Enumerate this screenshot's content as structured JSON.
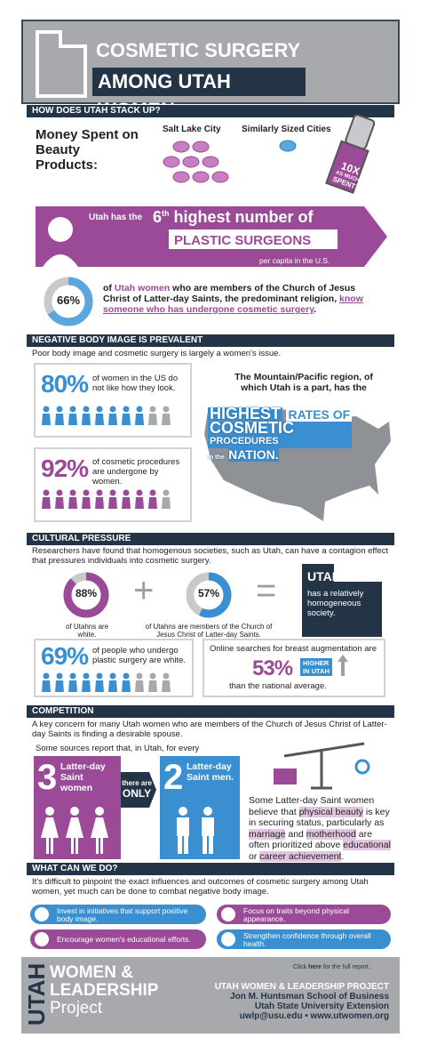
{
  "header": {
    "title_line1": "COSMETIC SURGERY",
    "title_line2": "AMONG UTAH WOMEN"
  },
  "stack_up": {
    "heading": "HOW DOES UTAH STACK UP?",
    "money_label": "Money Spent on Beauty Products:",
    "salt_lake": "Salt Lake City",
    "similar": "Similarly Sized Cities",
    "lipstick": [
      "10X",
      "AS MUCH",
      "SPENT!"
    ],
    "surgeons": {
      "lead": "Utah has the",
      "rank": 6,
      "rank_suffix": "th",
      "line1": "highest number of",
      "line2": "PLASTIC SURGEONS",
      "line3": "per capita in the U.S."
    },
    "lds_stat": {
      "value": 66,
      "label": "66%",
      "text_a": "of ",
      "highlight": "Utah women",
      "text_b": " who are members of the Church of Jesus Christ of Latter-day Saints, the predominant religion, ",
      "emphasis": "know someone who has undergone cosmetic surgery",
      "text_c": "."
    }
  },
  "body_image": {
    "heading": "NEGATIVE BODY IMAGE IS PREVALENT",
    "intro": "Poor body image and cosmetic surgery is largely a women's issue.",
    "stat1": {
      "value": 80,
      "label": "80%",
      "text": "of women in the US do not like how they look."
    },
    "stat2": {
      "value": 92,
      "label": "92%",
      "text": "of cosmetic procedures are undergone by women."
    },
    "region": "The Mountain/Pacific region, of which Utah is a part, has the",
    "map_text": [
      "HIGHEST",
      "RATES OF",
      "COSMETIC",
      "PROCEDURES",
      "in the",
      "NATION."
    ]
  },
  "cultural": {
    "heading": "CULTURAL PRESSURE",
    "intro": "Researchers have found that homogenous societies, such as Utah, can have a contagion effect that pressures individuals into cosmetic surgery.",
    "white": {
      "value": 88,
      "label": "88%",
      "caption": "of Utahns are white."
    },
    "lds": {
      "value": 57,
      "label": "57%",
      "caption": "of Utahns are members of the Church of Jesus Christ of Latter-day Saints."
    },
    "utah": {
      "title": "UTAH",
      "text": "has a relatively homogeneous society."
    },
    "plastic_white": {
      "value": 69,
      "label": "69%",
      "text": "of people who undergo plastic surgery are white."
    },
    "searches": {
      "intro": "Online searches for breast augmentation are",
      "value": 53,
      "label": "53%",
      "badge": [
        "HIGHER",
        "IN UTAH"
      ],
      "outro": "than the national average."
    }
  },
  "competition": {
    "heading": "COMPETITION",
    "intro": "A key concern for many Utah women who are members of the Church of Jesus Christ of Latter-day Saints is finding a desirable spouse.",
    "lead": "Some sources report that, in Utah, for every",
    "women": {
      "count": 3,
      "label": "Latter-day Saint women"
    },
    "middle": [
      "there are",
      "ONLY"
    ],
    "men": {
      "count": 2,
      "label": "Latter-day Saint men."
    },
    "note": [
      "Some Latter-day Saint women believe that ",
      "physical beauty",
      " is key in securing status, particularly as ",
      "marriage",
      " and ",
      "motherhood",
      " are often prioritized above ",
      "educational",
      " or ",
      "career achievement",
      "."
    ]
  },
  "actions": {
    "heading": "WHAT CAN WE DO?",
    "intro": "It's difficult to pinpoint the exact influences and outcomes of cosmetic surgery among Utah women, yet much can be done to combat negative body image.",
    "items": [
      "Invest in initiatives that support positive body image.",
      "Focus on traits beyond physical appearance.",
      "Encourage women's educational efforts.",
      "Strengthen confidence through overall health."
    ]
  },
  "footer": {
    "logo": [
      "UTAH",
      "WOMEN &",
      "LEADERSHIP",
      "Project"
    ],
    "click": [
      "Click ",
      "here",
      " for the full report."
    ],
    "org": "UTAH WOMEN & LEADERSHIP PROJECT",
    "lines": [
      "Jon M. Huntsman School of Business",
      "Utah State University Extension",
      "uwlp@usu.edu • www.utwomen.org"
    ]
  }
}
